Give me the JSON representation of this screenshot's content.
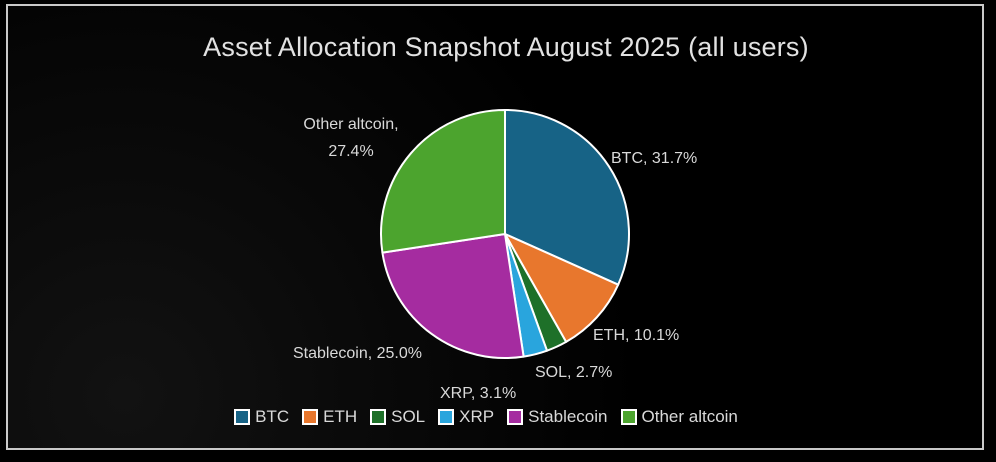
{
  "slide": {
    "background_color": "#000000",
    "frame_border_color": "#C9C9C9"
  },
  "chart_data": {
    "type": "pie",
    "title": "Asset Allocation Snapshot August 2025 (all users)",
    "categories": [
      "BTC",
      "ETH",
      "SOL",
      "XRP",
      "Stablecoin",
      "Other altcoin"
    ],
    "values": [
      31.7,
      10.1,
      2.7,
      3.1,
      25.0,
      27.4
    ],
    "colors": [
      "#176386",
      "#E8772D",
      "#1E7029",
      "#29A5DD",
      "#A52CA0",
      "#4CA42E"
    ],
    "start_angle_deg": 0,
    "direction": "clockwise",
    "slice_border_color": "#FFFFFF",
    "legend_position": "bottom",
    "slice_labels": {
      "btc": "BTC, 31.7%",
      "eth": "ETH, 10.1%",
      "sol": "SOL, 2.7%",
      "xrp": "XRP, 3.1%",
      "stablecoin": "Stablecoin, 25.0%",
      "other_altcoin_line1": "Other altcoin,",
      "other_altcoin_line2": "27.4%"
    }
  }
}
